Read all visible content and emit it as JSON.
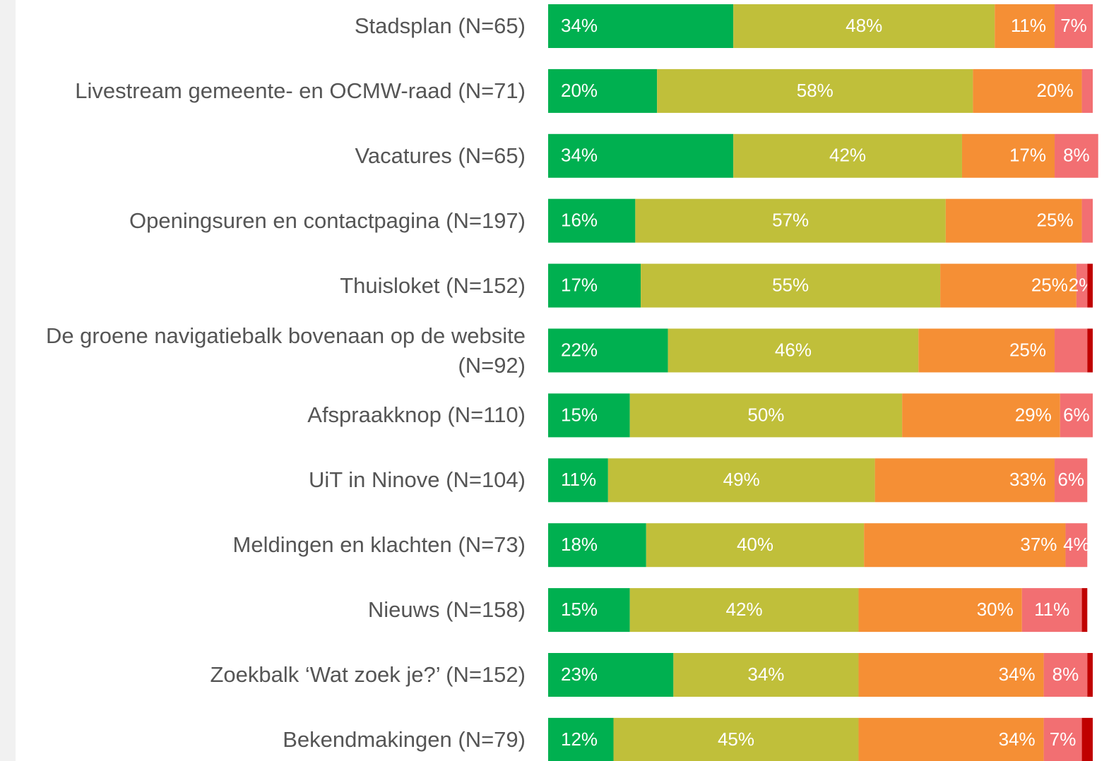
{
  "chart_data": {
    "type": "stacked-bar-horizontal",
    "categories": [
      "Stadsplan (N=65)",
      "Livestream gemeente- en OCMW-raad (N=71)",
      "Vacatures (N=65)",
      "Openingsuren en contactpagina (N=197)",
      "Thuisloket (N=152)",
      "De groene navigatiebalk bovenaan op de website (N=92)",
      "Afspraakknop (N=110)",
      "UiT in Ninove (N=104)",
      "Meldingen en klachten (N=73)",
      "Nieuws (N=158)",
      "Zoekbalk ‘Wat zoek je?’ (N=152)",
      "Bekendmakingen (N=79)"
    ],
    "xlim": [
      0,
      100
    ],
    "series": [
      {
        "color": "#00b050",
        "values": [
          34,
          20,
          34,
          16,
          17,
          22,
          15,
          11,
          18,
          15,
          23,
          12
        ],
        "value_labels": [
          "34%",
          "20%",
          "34%",
          "16%",
          "17%",
          "22%",
          "15%",
          "11%",
          "18%",
          "15%",
          "23%",
          "12%"
        ]
      },
      {
        "color": "#c0bf3a",
        "values": [
          48,
          58,
          42,
          57,
          55,
          46,
          50,
          49,
          40,
          42,
          34,
          45
        ],
        "value_labels": [
          "48%",
          "58%",
          "42%",
          "57%",
          "55%",
          "46%",
          "50%",
          "49%",
          "40%",
          "42%",
          "34%",
          "45%"
        ]
      },
      {
        "color": "#f58f35",
        "values": [
          11,
          20,
          17,
          25,
          25,
          25,
          29,
          33,
          37,
          30,
          34,
          34
        ],
        "value_labels": [
          "11%",
          "20%",
          "17%",
          "25%",
          "25%",
          "25%",
          "29%",
          "33%",
          "37%",
          "30%",
          "34%",
          "34%"
        ]
      },
      {
        "color": "#f26f72",
        "values": [
          7,
          2,
          8,
          2,
          2,
          6,
          6,
          6,
          4,
          11,
          8,
          7
        ],
        "value_labels": [
          "7%",
          null,
          "8%",
          null,
          "2%",
          null,
          "6%",
          "6%",
          "4%",
          "11%",
          "8%",
          "7%"
        ]
      },
      {
        "color": "#c00000",
        "values": [
          0,
          0,
          0,
          0,
          1,
          1,
          0,
          0,
          0,
          1,
          1,
          2
        ],
        "value_labels": [
          null,
          null,
          null,
          null,
          null,
          null,
          null,
          null,
          null,
          null,
          null,
          null
        ]
      }
    ]
  }
}
